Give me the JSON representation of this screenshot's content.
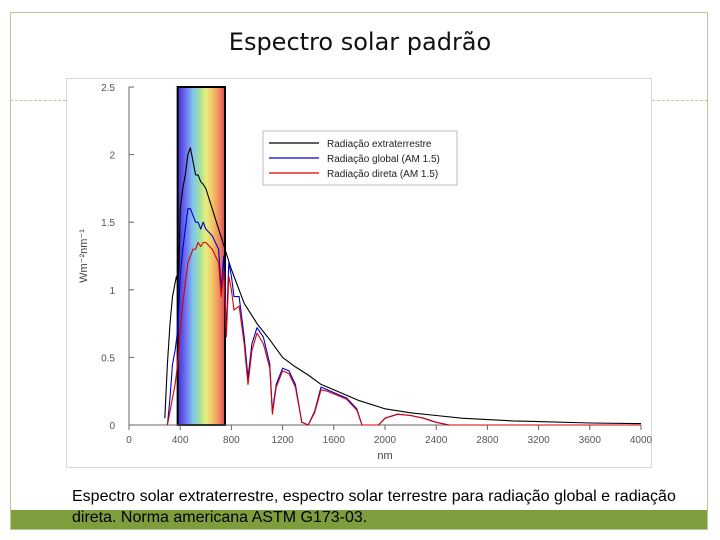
{
  "slide": {
    "title": "Espectro solar padrão",
    "caption": "Espectro solar extraterrestre, espectro solar terrestre para radiação global e radiação direta. Norma americana ASTM G173-03."
  },
  "colors": {
    "frame": "#b9c79a",
    "bottom_bar": "#7e9d3d",
    "extraterrestrial": "#000000",
    "global": "#0000cc",
    "direct": "#dd0000"
  },
  "chart_data": {
    "type": "line",
    "xlabel": "nm",
    "ylabel": "Wm⁻²nm⁻¹",
    "xlim": [
      0,
      4000
    ],
    "ylim": [
      0,
      2.5
    ],
    "x_ticks": [
      "0",
      "400",
      "800",
      "1200",
      "1600",
      "2000",
      "2400",
      "2800",
      "3200",
      "3600",
      "4000"
    ],
    "y_ticks": [
      "0",
      "0.5",
      "1",
      "1.5",
      "2",
      "2.5"
    ],
    "grid": false,
    "legend_position": "top-right",
    "visible_band_nm": [
      380,
      750
    ],
    "series": [
      {
        "name": "Radiação extraterrestre",
        "color": "#000000",
        "points": [
          [
            280,
            0.05
          ],
          [
            300,
            0.45
          ],
          [
            320,
            0.75
          ],
          [
            340,
            0.95
          ],
          [
            360,
            1.05
          ],
          [
            370,
            1.1
          ],
          [
            380,
            1.05
          ],
          [
            390,
            1.15
          ],
          [
            400,
            1.6
          ],
          [
            420,
            1.75
          ],
          [
            440,
            1.85
          ],
          [
            460,
            2.0
          ],
          [
            480,
            2.05
          ],
          [
            500,
            1.95
          ],
          [
            520,
            1.85
          ],
          [
            540,
            1.85
          ],
          [
            560,
            1.8
          ],
          [
            580,
            1.78
          ],
          [
            600,
            1.75
          ],
          [
            650,
            1.6
          ],
          [
            700,
            1.45
          ],
          [
            750,
            1.3
          ],
          [
            800,
            1.15
          ],
          [
            900,
            0.9
          ],
          [
            1000,
            0.75
          ],
          [
            1100,
            0.63
          ],
          [
            1200,
            0.5
          ],
          [
            1300,
            0.43
          ],
          [
            1400,
            0.37
          ],
          [
            1500,
            0.3
          ],
          [
            1600,
            0.26
          ],
          [
            1700,
            0.22
          ],
          [
            1800,
            0.18
          ],
          [
            2000,
            0.12
          ],
          [
            2200,
            0.09
          ],
          [
            2400,
            0.07
          ],
          [
            2600,
            0.05
          ],
          [
            2800,
            0.04
          ],
          [
            3000,
            0.03
          ],
          [
            3200,
            0.025
          ],
          [
            3600,
            0.015
          ],
          [
            4000,
            0.01
          ]
        ]
      },
      {
        "name": "Radiação global (AM 1.5)",
        "color": "#0000cc",
        "points": [
          [
            300,
            0.0
          ],
          [
            320,
            0.2
          ],
          [
            340,
            0.45
          ],
          [
            360,
            0.55
          ],
          [
            380,
            0.7
          ],
          [
            400,
            1.1
          ],
          [
            420,
            1.3
          ],
          [
            440,
            1.45
          ],
          [
            460,
            1.6
          ],
          [
            480,
            1.6
          ],
          [
            500,
            1.55
          ],
          [
            520,
            1.5
          ],
          [
            540,
            1.5
          ],
          [
            560,
            1.45
          ],
          [
            580,
            1.5
          ],
          [
            600,
            1.45
          ],
          [
            650,
            1.4
          ],
          [
            700,
            1.3
          ],
          [
            720,
            1.0
          ],
          [
            740,
            1.25
          ],
          [
            760,
            0.7
          ],
          [
            780,
            1.2
          ],
          [
            800,
            1.1
          ],
          [
            820,
            0.95
          ],
          [
            860,
            0.95
          ],
          [
            900,
            0.65
          ],
          [
            930,
            0.35
          ],
          [
            960,
            0.6
          ],
          [
            1000,
            0.72
          ],
          [
            1050,
            0.65
          ],
          [
            1100,
            0.45
          ],
          [
            1120,
            0.1
          ],
          [
            1150,
            0.3
          ],
          [
            1200,
            0.42
          ],
          [
            1250,
            0.4
          ],
          [
            1300,
            0.3
          ],
          [
            1350,
            0.02
          ],
          [
            1400,
            0.0
          ],
          [
            1450,
            0.1
          ],
          [
            1500,
            0.28
          ],
          [
            1550,
            0.26
          ],
          [
            1600,
            0.24
          ],
          [
            1700,
            0.2
          ],
          [
            1780,
            0.12
          ],
          [
            1820,
            0.0
          ],
          [
            1950,
            0.0
          ],
          [
            2000,
            0.05
          ],
          [
            2100,
            0.08
          ],
          [
            2200,
            0.07
          ],
          [
            2300,
            0.05
          ],
          [
            2400,
            0.02
          ],
          [
            2500,
            0.0
          ],
          [
            4000,
            0.0
          ]
        ]
      },
      {
        "name": "Radiação direta (AM 1.5)",
        "color": "#dd0000",
        "points": [
          [
            300,
            0.0
          ],
          [
            320,
            0.1
          ],
          [
            340,
            0.2
          ],
          [
            360,
            0.3
          ],
          [
            380,
            0.45
          ],
          [
            400,
            0.7
          ],
          [
            420,
            0.9
          ],
          [
            440,
            1.05
          ],
          [
            460,
            1.2
          ],
          [
            480,
            1.25
          ],
          [
            500,
            1.3
          ],
          [
            520,
            1.3
          ],
          [
            540,
            1.35
          ],
          [
            560,
            1.32
          ],
          [
            580,
            1.35
          ],
          [
            600,
            1.35
          ],
          [
            650,
            1.3
          ],
          [
            700,
            1.2
          ],
          [
            720,
            0.95
          ],
          [
            740,
            1.15
          ],
          [
            760,
            0.65
          ],
          [
            780,
            1.1
          ],
          [
            800,
            1.0
          ],
          [
            820,
            0.85
          ],
          [
            860,
            0.88
          ],
          [
            900,
            0.6
          ],
          [
            930,
            0.3
          ],
          [
            960,
            0.55
          ],
          [
            1000,
            0.68
          ],
          [
            1050,
            0.6
          ],
          [
            1100,
            0.42
          ],
          [
            1120,
            0.08
          ],
          [
            1150,
            0.28
          ],
          [
            1200,
            0.4
          ],
          [
            1250,
            0.38
          ],
          [
            1300,
            0.28
          ],
          [
            1350,
            0.02
          ],
          [
            1400,
            0.0
          ],
          [
            1450,
            0.09
          ],
          [
            1500,
            0.26
          ],
          [
            1550,
            0.25
          ],
          [
            1600,
            0.23
          ],
          [
            1700,
            0.19
          ],
          [
            1780,
            0.11
          ],
          [
            1820,
            0.0
          ],
          [
            1950,
            0.0
          ],
          [
            2000,
            0.05
          ],
          [
            2100,
            0.08
          ],
          [
            2200,
            0.07
          ],
          [
            2300,
            0.05
          ],
          [
            2400,
            0.02
          ],
          [
            2500,
            0.0
          ],
          [
            4000,
            0.0
          ]
        ]
      }
    ]
  }
}
